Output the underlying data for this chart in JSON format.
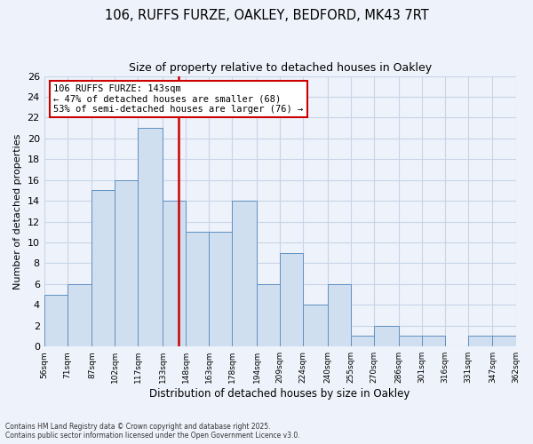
{
  "title": "106, RUFFS FURZE, OAKLEY, BEDFORD, MK43 7RT",
  "subtitle": "Size of property relative to detached houses in Oakley",
  "xlabel": "Distribution of detached houses by size in Oakley",
  "ylabel": "Number of detached properties",
  "bar_color": "#d0dff0",
  "bar_edge_color": "#6090c0",
  "background_color": "#eef2fa",
  "grid_color": "#c8d4e8",
  "vline_x": 143,
  "vline_color": "#cc0000",
  "bin_edges": [
    56,
    71,
    87,
    102,
    117,
    133,
    148,
    163,
    178,
    194,
    209,
    224,
    240,
    255,
    270,
    286,
    301,
    316,
    331,
    347,
    362
  ],
  "bin_labels": [
    "56sqm",
    "71sqm",
    "87sqm",
    "102sqm",
    "117sqm",
    "133sqm",
    "148sqm",
    "163sqm",
    "178sqm",
    "194sqm",
    "209sqm",
    "224sqm",
    "240sqm",
    "255sqm",
    "270sqm",
    "286sqm",
    "301sqm",
    "316sqm",
    "331sqm",
    "347sqm",
    "362sqm"
  ],
  "counts": [
    5,
    6,
    15,
    16,
    21,
    14,
    11,
    11,
    14,
    6,
    9,
    4,
    6,
    1,
    2,
    1,
    1,
    0,
    1,
    1
  ],
  "ylim": [
    0,
    26
  ],
  "yticks": [
    0,
    2,
    4,
    6,
    8,
    10,
    12,
    14,
    16,
    18,
    20,
    22,
    24,
    26
  ],
  "annotation_line1": "106 RUFFS FURZE: 143sqm",
  "annotation_line2": "← 47% of detached houses are smaller (68)",
  "annotation_line3": "53% of semi-detached houses are larger (76) →",
  "footnote1": "Contains HM Land Registry data © Crown copyright and database right 2025.",
  "footnote2": "Contains public sector information licensed under the Open Government Licence v3.0."
}
